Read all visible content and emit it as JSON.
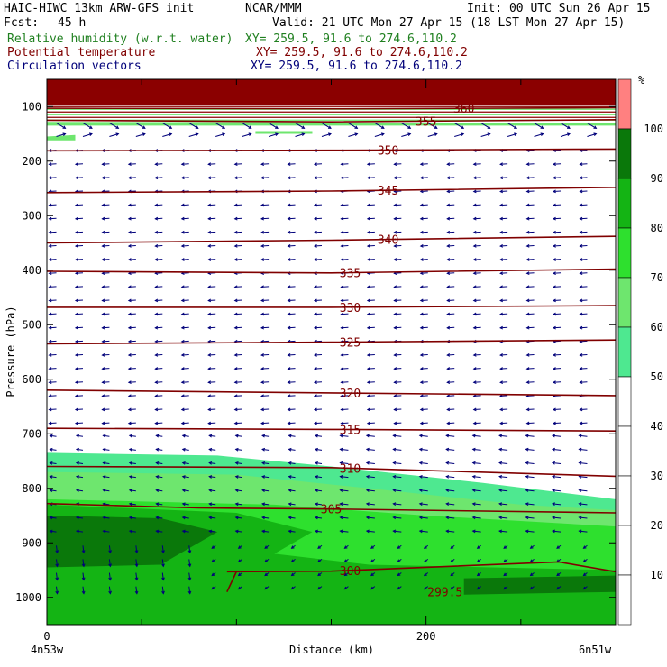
{
  "header": {
    "title_left": "HAIC-HIWC 13km ARW-GFS init",
    "org": "NCAR/MMM",
    "init": "Init: 00 UTC Sun 26 Apr 15",
    "fcst_label": "Fcst:",
    "fcst_value": "45 h",
    "valid": "Valid: 21 UTC Mon 27 Apr 15 (18 LST Mon 27 Apr 15)",
    "fields": [
      {
        "name": "Relative humidity (w.r.t. water)",
        "xy": "XY= 259.5, 91.6 to 274.6,110.2",
        "color": "#208020"
      },
      {
        "name": "Potential temperature",
        "xy": "XY= 259.5, 91.6 to 274.6,110.2",
        "color": "#800000"
      },
      {
        "name": "Circulation vectors",
        "xy": "XY= 259.5, 91.6 to 274.6,110.2",
        "color": "#00007a"
      }
    ]
  },
  "chart_data": {
    "type": "cross-section",
    "ylabel": "Pressure (hPa)",
    "xlabel": "Distance (km)",
    "x_start_label": "4n53w",
    "x_end_label": "6n51w",
    "xlim": [
      0,
      300
    ],
    "ylim": [
      1050,
      50
    ],
    "x_ticks": [
      0,
      200
    ],
    "y_ticks": [
      100,
      200,
      300,
      400,
      500,
      600,
      700,
      800,
      900,
      1000
    ],
    "colorbar": {
      "unit": "%",
      "levels": [
        10,
        20,
        30,
        40,
        50,
        60,
        70,
        80,
        90,
        100
      ],
      "labels": [
        "10",
        "20",
        "30",
        "40",
        "50",
        "60",
        "70",
        "80",
        "90",
        "100"
      ],
      "colors": [
        "#ffffff",
        "#ffffff",
        "#ffffff",
        "#ffffff",
        "#ffffff",
        "#4ee890",
        "#6ee66e",
        "#2ee02e",
        "#14b414",
        "#0a780a",
        "#ff8080"
      ],
      "top_band_color": "#8b0000"
    },
    "theta_contours": [
      {
        "label": "360",
        "points": [
          [
            0,
            103
          ],
          [
            150,
            104
          ],
          [
            300,
            102
          ]
        ],
        "label_x": 220
      },
      {
        "label": "355",
        "points": [
          [
            0,
            125
          ],
          [
            150,
            128
          ],
          [
            300,
            124
          ]
        ],
        "label_x": 200
      },
      {
        "label": "350",
        "points": [
          [
            0,
            181
          ],
          [
            150,
            180
          ],
          [
            300,
            178
          ]
        ],
        "label_x": 180
      },
      {
        "label": "345",
        "points": [
          [
            0,
            258
          ],
          [
            150,
            255
          ],
          [
            300,
            248
          ]
        ],
        "label_x": 180
      },
      {
        "label": "340",
        "points": [
          [
            0,
            350
          ],
          [
            150,
            345
          ],
          [
            300,
            338
          ]
        ],
        "label_x": 180
      },
      {
        "label": "335",
        "points": [
          [
            0,
            402
          ],
          [
            150,
            405
          ],
          [
            300,
            398
          ]
        ],
        "label_x": 160
      },
      {
        "label": "330",
        "points": [
          [
            0,
            468
          ],
          [
            150,
            468
          ],
          [
            300,
            465
          ]
        ],
        "label_x": 160
      },
      {
        "label": "325",
        "points": [
          [
            0,
            535
          ],
          [
            150,
            532
          ],
          [
            300,
            528
          ]
        ],
        "label_x": 160
      },
      {
        "label": "320",
        "points": [
          [
            0,
            620
          ],
          [
            150,
            625
          ],
          [
            300,
            630
          ]
        ],
        "label_x": 160
      },
      {
        "label": "315",
        "points": [
          [
            0,
            690
          ],
          [
            150,
            692
          ],
          [
            300,
            695
          ]
        ],
        "label_x": 160
      },
      {
        "label": "310",
        "points": [
          [
            0,
            760
          ],
          [
            150,
            762
          ],
          [
            300,
            778
          ]
        ],
        "label_x": 160
      },
      {
        "label": "305",
        "points": [
          [
            0,
            828
          ],
          [
            80,
            836
          ],
          [
            150,
            838
          ],
          [
            300,
            845
          ]
        ],
        "label_x": 150
      },
      {
        "label": "300",
        "points": [
          [
            95,
            953
          ],
          [
            150,
            952
          ],
          [
            270,
            935
          ],
          [
            300,
            953
          ]
        ],
        "label_x": 160
      },
      {
        "label": "299.5",
        "points": [
          [
            95,
            990
          ],
          [
            100,
            953
          ]
        ],
        "label_x": 210
      }
    ],
    "rh_regions": [
      {
        "level": 50,
        "points": [
          [
            0,
            735
          ],
          [
            90,
            740
          ],
          [
            150,
            760
          ],
          [
            230,
            790
          ],
          [
            300,
            820
          ],
          [
            300,
            1050
          ],
          [
            0,
            1050
          ]
        ]
      },
      {
        "level": 60,
        "points": [
          [
            0,
            770
          ],
          [
            100,
            775
          ],
          [
            170,
            800
          ],
          [
            250,
            830
          ],
          [
            300,
            840
          ],
          [
            300,
            1050
          ],
          [
            0,
            1050
          ]
        ]
      },
      {
        "level": 70,
        "points": [
          [
            0,
            820
          ],
          [
            120,
            830
          ],
          [
            200,
            850
          ],
          [
            300,
            870
          ],
          [
            300,
            1050
          ],
          [
            0,
            1050
          ]
        ]
      },
      {
        "level": 80,
        "points": [
          [
            0,
            830
          ],
          [
            100,
            845
          ],
          [
            140,
            880
          ],
          [
            120,
            920
          ],
          [
            170,
            940
          ],
          [
            300,
            950
          ],
          [
            300,
            1050
          ],
          [
            0,
            1050
          ]
        ]
      },
      {
        "level": 90,
        "points": [
          [
            0,
            850
          ],
          [
            60,
            855
          ],
          [
            90,
            880
          ],
          [
            60,
            940
          ],
          [
            0,
            945
          ]
        ]
      },
      {
        "level": 80,
        "points": [
          [
            95,
            960
          ],
          [
            200,
            955
          ],
          [
            300,
            950
          ],
          [
            300,
            1000
          ],
          [
            95,
            1000
          ]
        ]
      },
      {
        "level": 90,
        "points": [
          [
            220,
            965
          ],
          [
            300,
            960
          ],
          [
            300,
            990
          ],
          [
            220,
            995
          ]
        ]
      },
      {
        "level": 60,
        "points": [
          [
            0,
            128
          ],
          [
            300,
            130
          ],
          [
            300,
            135
          ],
          [
            0,
            135
          ]
        ]
      },
      {
        "level": 60,
        "points": [
          [
            0,
            155
          ],
          [
            15,
            152
          ],
          [
            15,
            162
          ],
          [
            0,
            162
          ]
        ]
      },
      {
        "level": 60,
        "points": [
          [
            110,
            145
          ],
          [
            140,
            145
          ],
          [
            140,
            150
          ],
          [
            110,
            150
          ]
        ]
      }
    ],
    "vectors": {
      "description": "circulation vectors across the section",
      "upper_rightward_levels": [
        120,
        150
      ],
      "lower_leftward": true
    },
    "grid": false
  }
}
